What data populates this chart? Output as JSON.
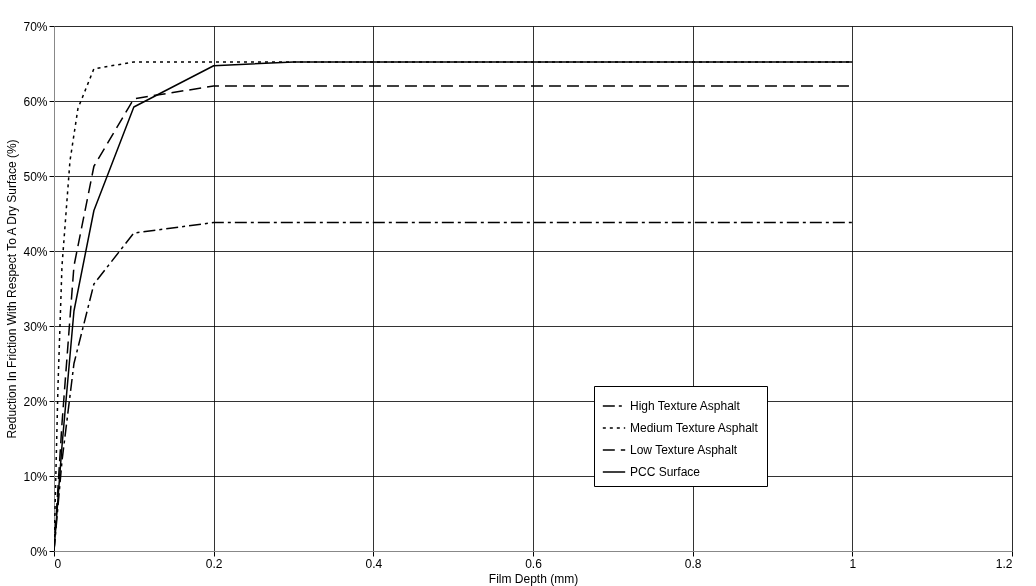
{
  "chart_data": {
    "type": "line",
    "xlabel": "Film Depth (mm)",
    "ylabel": "Reduction In Friction With Respect To A Dry Surface (%)",
    "xlim": [
      0,
      1.2
    ],
    "xticks": [
      0,
      0.2,
      0.4,
      0.6,
      0.8,
      1,
      1.2
    ],
    "ylim": [
      0,
      70
    ],
    "yticks": [
      {
        "value": 0,
        "label": "0%"
      },
      {
        "value": 10,
        "label": "10%"
      },
      {
        "value": 20,
        "label": "20%"
      },
      {
        "value": 30,
        "label": "30%"
      },
      {
        "value": 40,
        "label": "40%"
      },
      {
        "value": 50,
        "label": "50%"
      },
      {
        "value": 60,
        "label": "60%"
      },
      {
        "value": 70,
        "label": "70%"
      }
    ],
    "grid": true,
    "legend": "bottom right",
    "marker": "none",
    "series": [
      {
        "name": "High Texture Asphalt",
        "color": "#000000",
        "line_style": "dashdot",
        "x": [
          0,
          0.01,
          0.025,
          0.05,
          0.1,
          0.2,
          0.4,
          0.6,
          0.8,
          1
        ],
        "values": [
          0,
          12,
          25,
          35.6,
          42.4,
          43.8,
          43.8,
          43.8,
          43.8,
          43.8
        ]
      },
      {
        "name": "Medium Texture Asphalt",
        "color": "#000000",
        "line_style": "dotted",
        "x": [
          0,
          0.005,
          0.01,
          0.02,
          0.03,
          0.05,
          0.1,
          0.2,
          0.4,
          0.6,
          0.8,
          1
        ],
        "values": [
          0,
          22,
          38,
          52,
          59,
          64.3,
          65.2,
          65.2,
          65.2,
          65.2,
          65.2,
          65.2
        ]
      },
      {
        "name": "Low Texture Asphalt",
        "color": "#000000",
        "line_style": "dashed",
        "x": [
          0,
          0.01,
          0.025,
          0.05,
          0.1,
          0.2,
          0.4,
          0.6,
          0.8,
          1
        ],
        "values": [
          0,
          17,
          38,
          51.3,
          60.3,
          62,
          62,
          62,
          62,
          62
        ]
      },
      {
        "name": "PCC Surface",
        "color": "#000000",
        "line_style": "solid",
        "x": [
          0,
          0.01,
          0.025,
          0.05,
          0.1,
          0.2,
          0.3,
          0.4,
          0.6,
          0.8,
          1
        ],
        "values": [
          0,
          14,
          32,
          45.4,
          59.2,
          64.7,
          65.2,
          65.2,
          65.2,
          65.2,
          65.2
        ]
      }
    ]
  }
}
